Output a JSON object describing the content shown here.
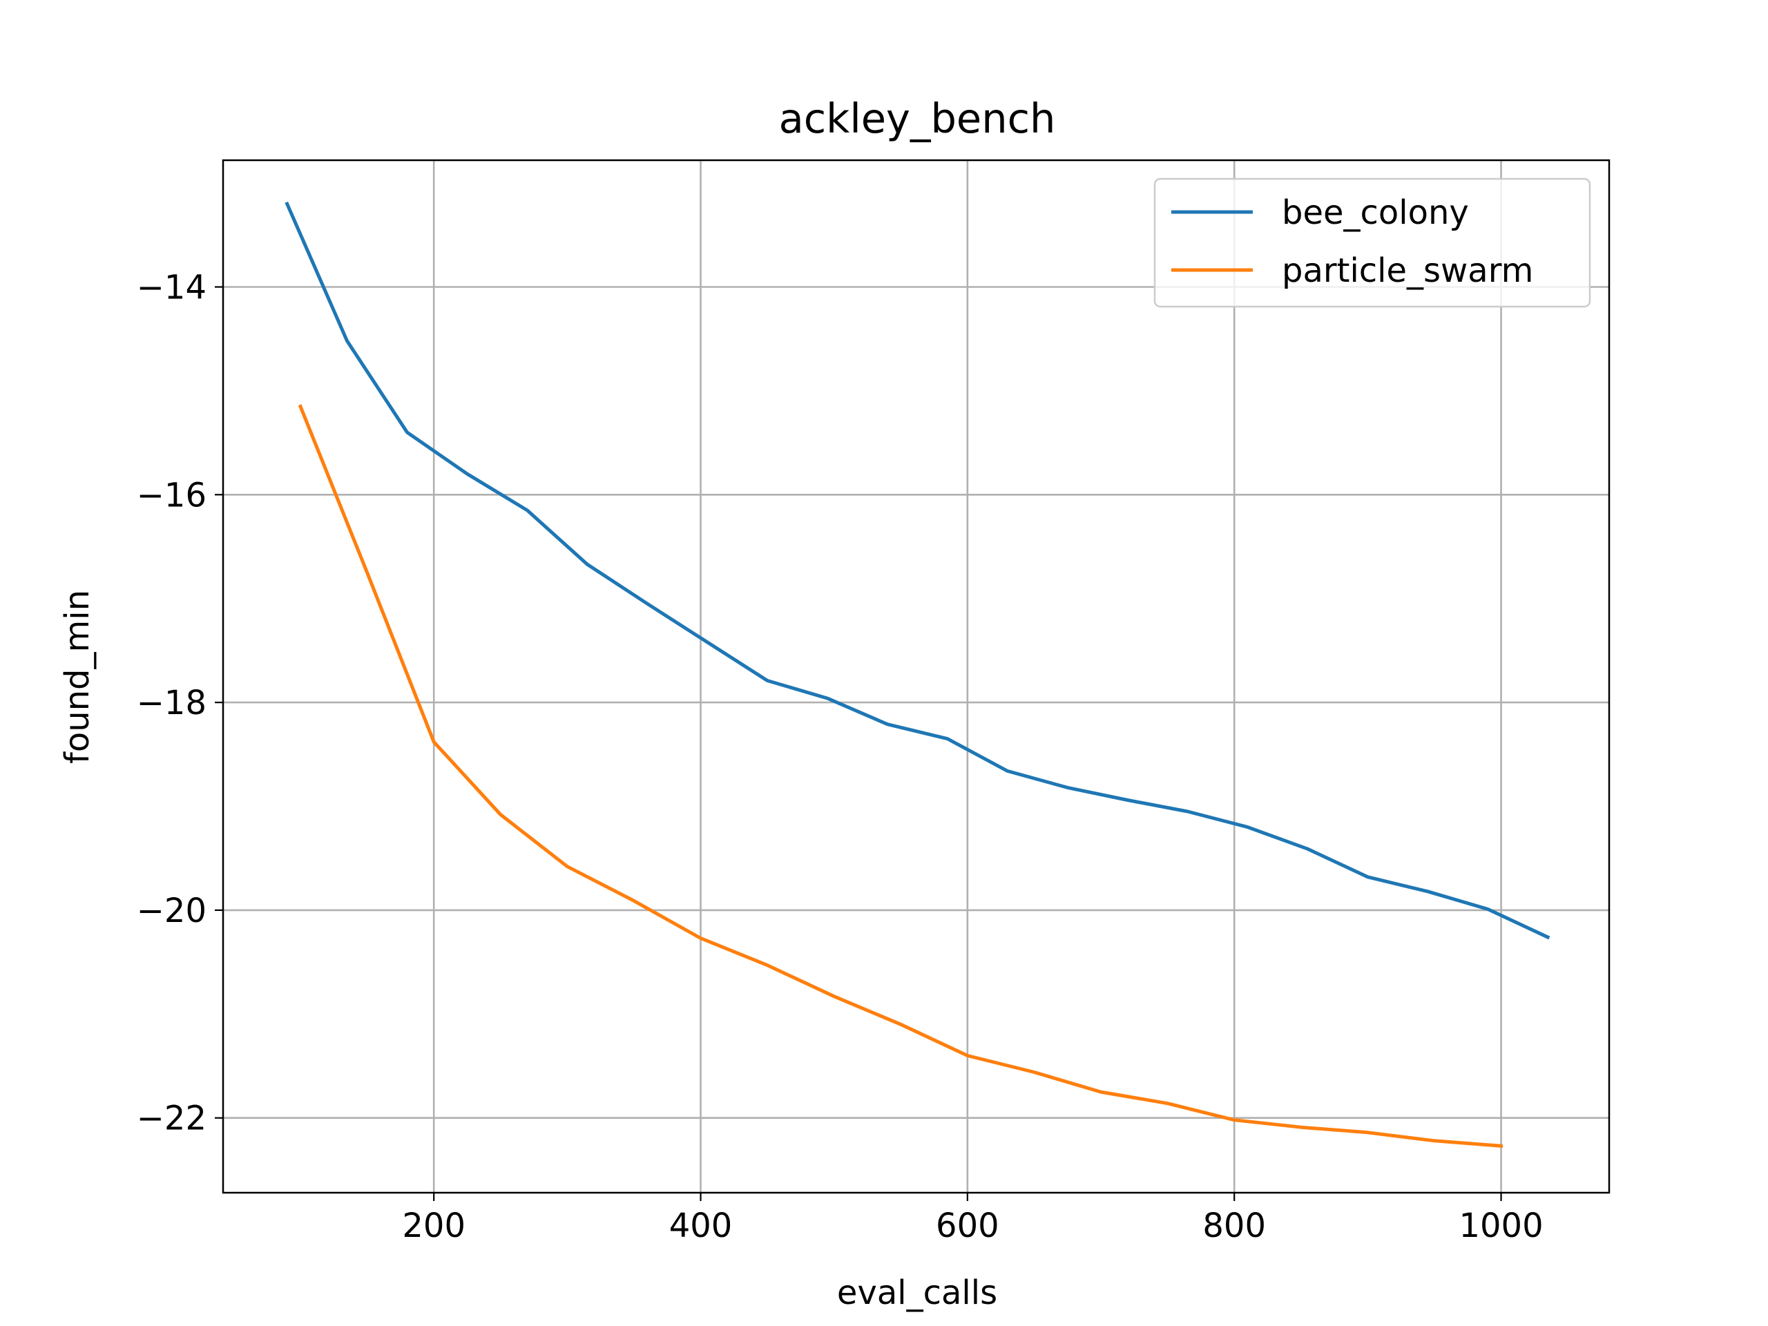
{
  "chart_data": {
    "type": "line",
    "title": "ackley_bench",
    "xlabel": "eval_calls",
    "ylabel": "found_min",
    "xlim": [
      42,
      1081
    ],
    "ylim": [
      -22.72,
      -12.78
    ],
    "xticks": [
      200,
      400,
      600,
      800,
      1000
    ],
    "yticks": [
      -14,
      -16,
      -18,
      -20,
      -22
    ],
    "grid": true,
    "legend": "top-right",
    "series": [
      {
        "name": "bee_colony",
        "color": "#1f77b4",
        "x": [
          90,
          135,
          180,
          225,
          270,
          315,
          360,
          405,
          450,
          495,
          540,
          585,
          630,
          675,
          720,
          765,
          810,
          855,
          900,
          945,
          990,
          1035
        ],
        "y": [
          -13.2,
          -14.52,
          -15.4,
          -15.8,
          -16.15,
          -16.67,
          -17.05,
          -17.42,
          -17.79,
          -17.96,
          -18.21,
          -18.35,
          -18.66,
          -18.82,
          -18.94,
          -19.05,
          -19.2,
          -19.41,
          -19.68,
          -19.82,
          -19.99,
          -20.26
        ]
      },
      {
        "name": "particle_swarm",
        "color": "#ff7f0e",
        "x": [
          100,
          150,
          200,
          250,
          300,
          350,
          400,
          450,
          500,
          550,
          600,
          650,
          700,
          750,
          800,
          850,
          900,
          950,
          1000
        ],
        "y": [
          -15.15,
          -16.75,
          -18.38,
          -19.08,
          -19.58,
          -19.91,
          -20.27,
          -20.53,
          -20.83,
          -21.1,
          -21.4,
          -21.56,
          -21.75,
          -21.86,
          -22.02,
          -22.09,
          -22.14,
          -22.22,
          -22.27
        ]
      }
    ]
  }
}
